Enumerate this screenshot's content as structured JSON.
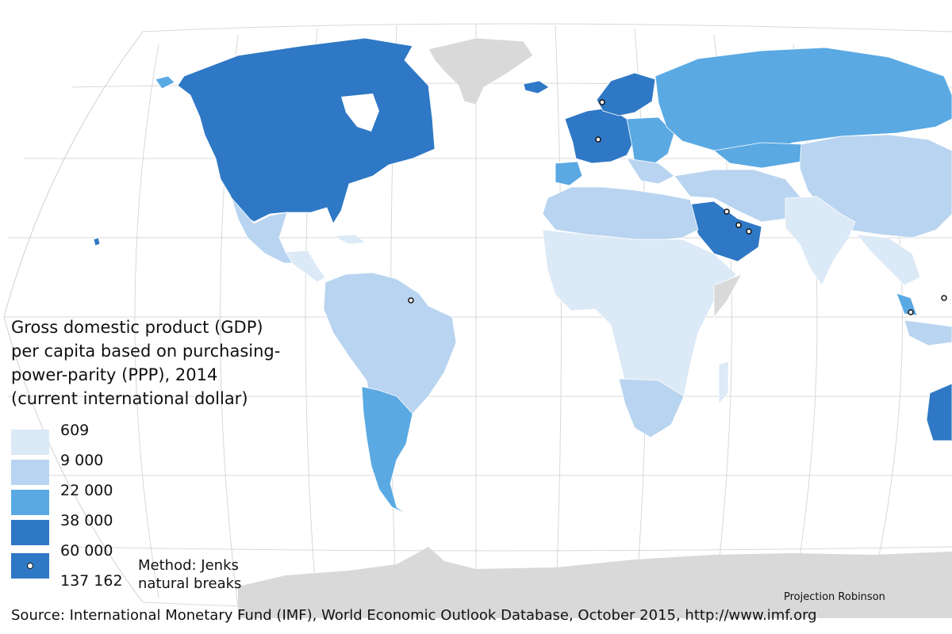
{
  "title": {
    "lines": [
      "Gross domestic product (GDP)",
      "per capita based on purchasing-",
      "power-parity (PPP), 2014",
      "(current international dollar)"
    ]
  },
  "legend": {
    "breaks": [
      "609",
      "9 000",
      "22 000",
      "38 000",
      "60 000",
      "137 162"
    ],
    "colors": [
      "#dce9f6",
      "#b8d4f0",
      "#5aa9e3",
      "#2f78c5",
      "#2f78c5"
    ],
    "no_data_color": "#d9d9d9"
  },
  "method": {
    "line1": "Method: Jenks",
    "line2": "natural breaks"
  },
  "projection": "Projection Robinson",
  "source": "Source: International Monetary Fund (IMF), World Economic Outlook Database, October 2015, http://www.imf.org",
  "map_classes": {
    "North America": 4,
    "Mexico": 2,
    "Central America": 1,
    "Greenland": "no-data",
    "Iceland": 4,
    "Northern Europe": 4,
    "Western Europe": 4,
    "Eastern Europe": 3,
    "Russia": 3,
    "Kazakhstan": 3,
    "Central Asia": 2,
    "Middle East": 2,
    "Saudi Arabia": 4,
    "India": 1,
    "China": 2,
    "Southeast Asia": 1,
    "Malaysia": 3,
    "North Africa": 2,
    "Sub-Saharan Africa": 1,
    "Southern Africa": 2,
    "Brazil": 2,
    "Argentina": 3,
    "Chile": 3,
    "Australia": 4,
    "Antarctica": "no-data"
  }
}
